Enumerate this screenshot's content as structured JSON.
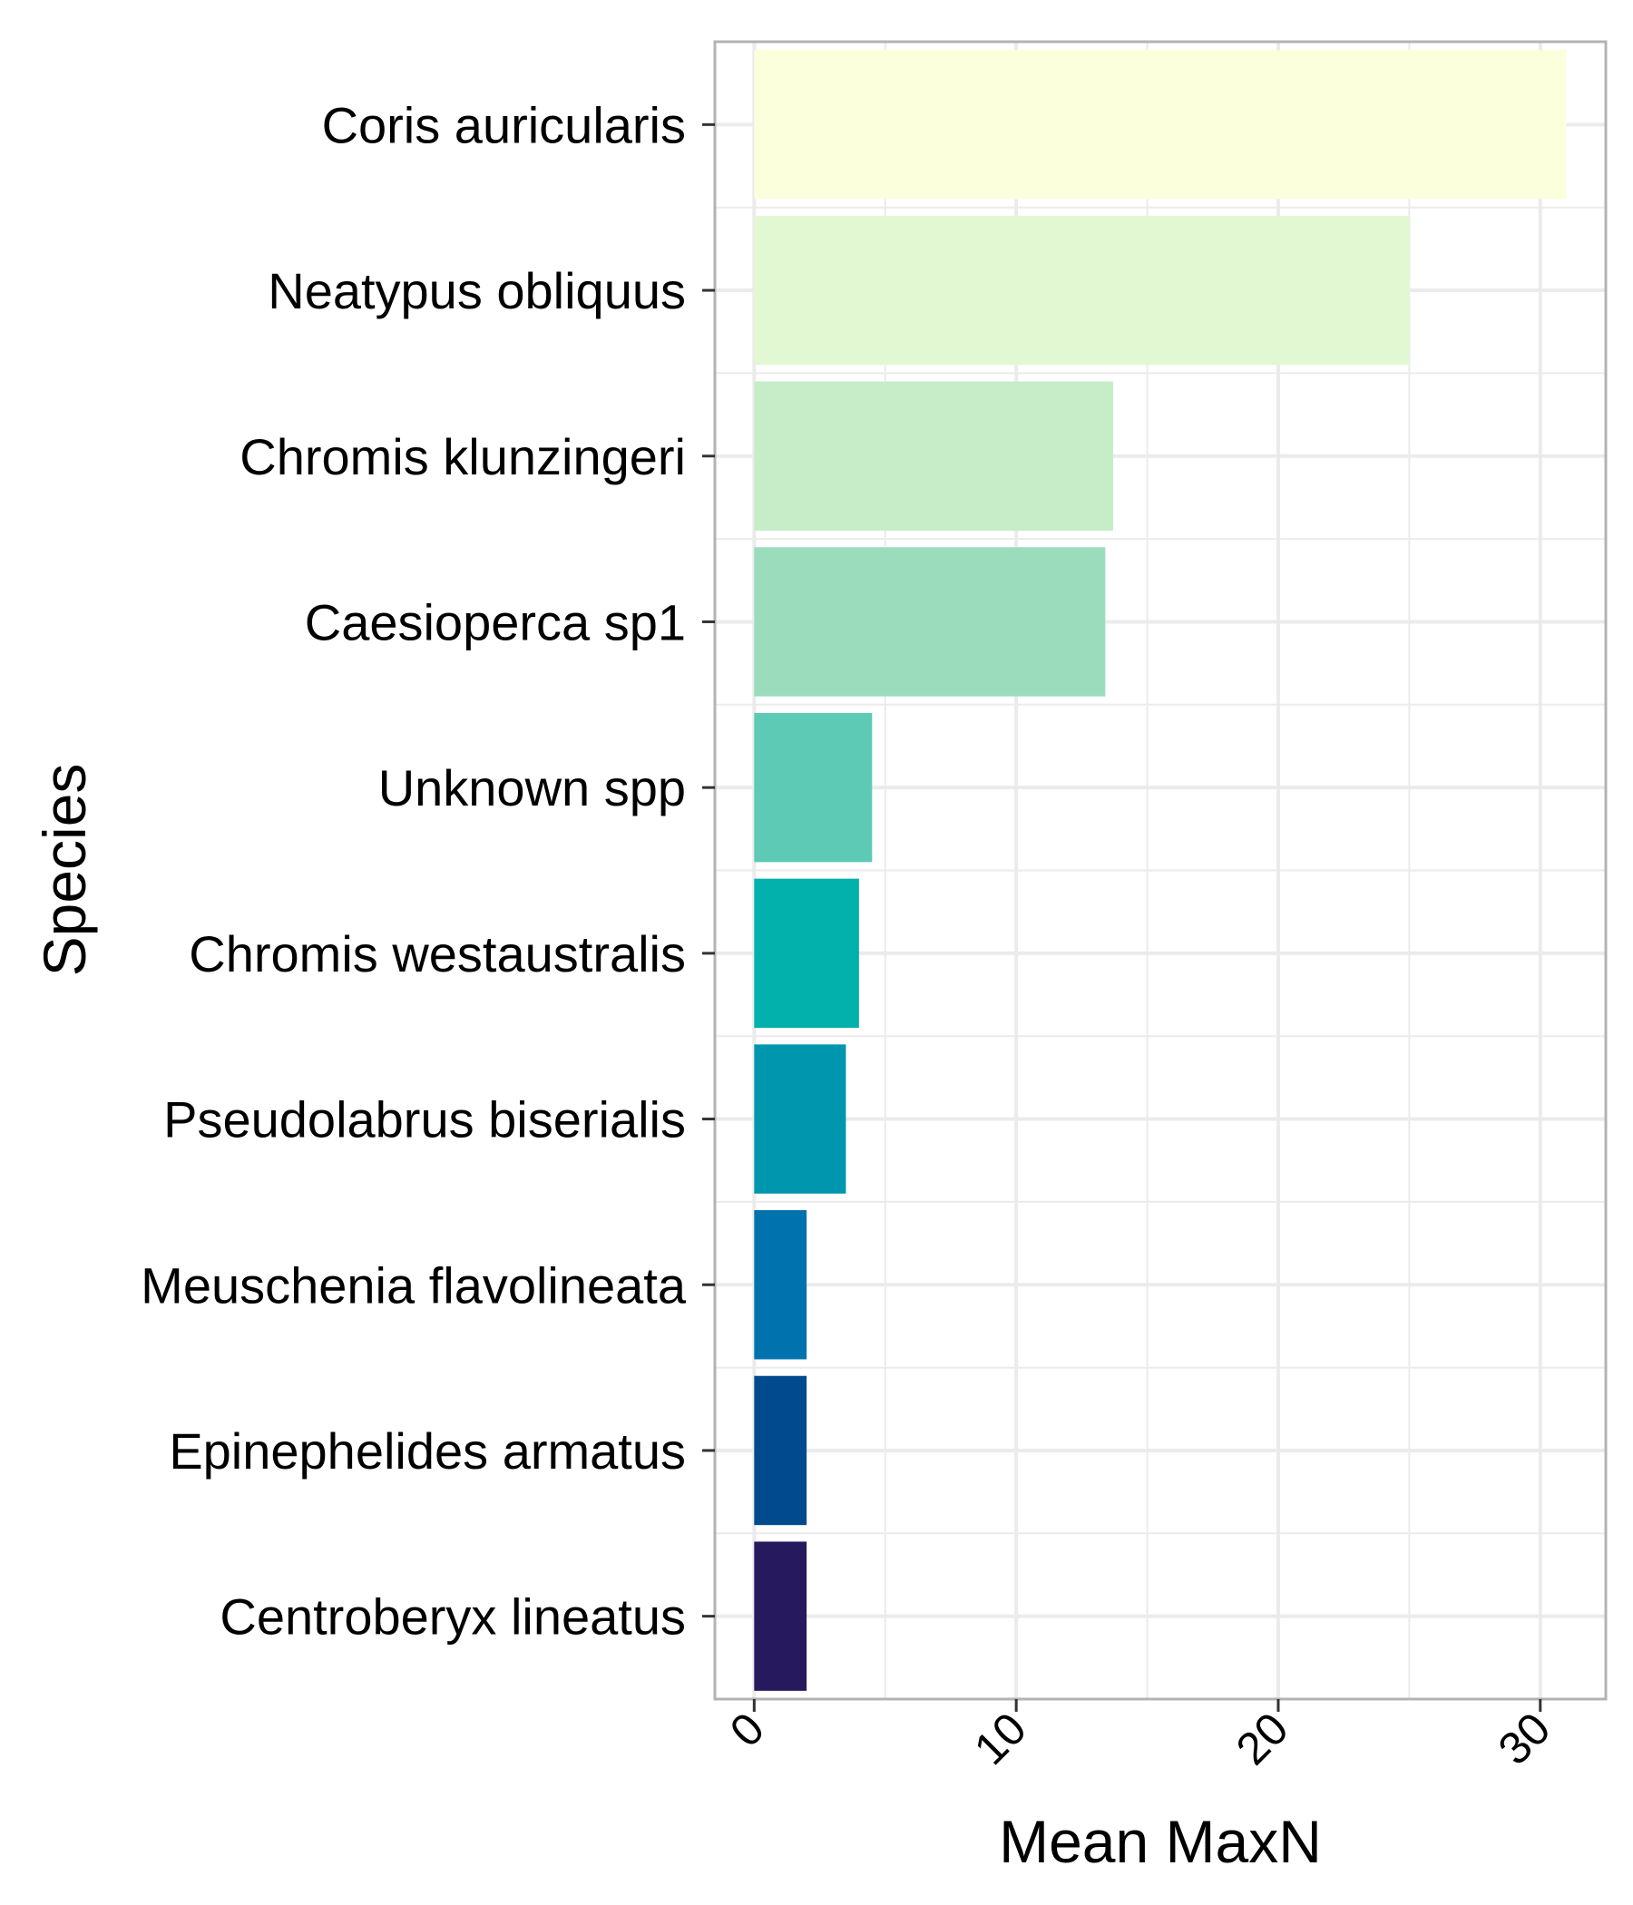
{
  "chart_data": {
    "type": "bar",
    "orientation": "horizontal",
    "title": "",
    "xlabel": "Mean MaxN",
    "ylabel": "Species",
    "xlim": [
      -1.5,
      32.5
    ],
    "x_ticks": [
      "0",
      "10",
      "20",
      "30"
    ],
    "grid": true,
    "categories": [
      "Coris auricularis",
      "Neatypus obliquus",
      "Chromis klunzingeri",
      "Caesioperca sp1",
      "Unknown spp",
      "Chromis westaustralis",
      "Pseudolabrus biserialis",
      "Meuschenia flavolineata",
      "Epinephelides armatus",
      "Centroberyx lineatus"
    ],
    "values": [
      31,
      25,
      13.7,
      13.4,
      4.5,
      4.0,
      3.5,
      2.0,
      2.0,
      2.0
    ],
    "colors": [
      "#fbffdc",
      "#e2f8d3",
      "#c6ecc8",
      "#9bdcbd",
      "#5ccab4",
      "#02b0ac",
      "#0096ae",
      "#0073ae",
      "#004a8d",
      "#26195e"
    ]
  }
}
